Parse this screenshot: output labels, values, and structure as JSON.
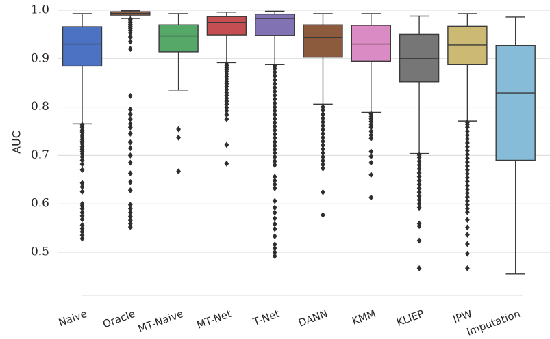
{
  "chart_data": {
    "type": "box",
    "title": "",
    "xlabel": "",
    "ylabel": "AUC",
    "ylim": [
      0.44,
      1.0
    ],
    "yticks": [
      0.5,
      0.6,
      0.7,
      0.8,
      0.9,
      1.0
    ],
    "ytick_labels": [
      "0.5",
      "0.6",
      "0.7",
      "0.8",
      "0.9",
      "1.0"
    ],
    "grid": "horizontal",
    "categories": [
      "Naive",
      "Oracle",
      "MT-Naive",
      "MT-Net",
      "T-Net",
      "DANN",
      "KMM",
      "KLIEP",
      "IPW",
      "Imputation"
    ],
    "boxes": [
      {
        "name": "Naive",
        "color": "#4c72c4",
        "whislo": 0.765,
        "q1": 0.885,
        "median": 0.93,
        "q3": 0.966,
        "whishi": 0.993,
        "fliers": [
          0.528,
          0.535,
          0.542,
          0.549,
          0.556,
          0.568,
          0.575,
          0.582,
          0.59,
          0.596,
          0.6,
          0.625,
          0.635,
          0.643,
          0.67,
          0.682,
          0.69,
          0.697,
          0.703,
          0.708,
          0.713,
          0.718,
          0.724,
          0.728,
          0.733,
          0.738,
          0.742,
          0.748,
          0.752,
          0.757,
          0.76,
          0.763
        ]
      },
      {
        "name": "Oracle",
        "color": "#dd8452",
        "whislo": 0.983,
        "q1": 0.99,
        "median": 0.994,
        "q3": 0.997,
        "whishi": 0.999,
        "fliers": [
          0.552,
          0.559,
          0.566,
          0.574,
          0.582,
          0.59,
          0.598,
          0.628,
          0.645,
          0.663,
          0.685,
          0.7,
          0.715,
          0.727,
          0.745,
          0.758,
          0.765,
          0.775,
          0.785,
          0.795,
          0.823,
          0.92,
          0.935,
          0.945,
          0.953,
          0.958,
          0.963,
          0.967,
          0.971,
          0.975,
          0.978,
          0.981
        ]
      },
      {
        "name": "MT-Naive",
        "color": "#55a868",
        "whislo": 0.835,
        "q1": 0.914,
        "median": 0.947,
        "q3": 0.97,
        "whishi": 0.993,
        "fliers": [
          0.667,
          0.737,
          0.754
        ]
      },
      {
        "name": "MT-Net",
        "color": "#c44e52",
        "whislo": 0.892,
        "q1": 0.949,
        "median": 0.975,
        "q3": 0.987,
        "whishi": 0.996,
        "fliers": [
          0.683,
          0.722,
          0.775,
          0.784,
          0.792,
          0.799,
          0.806,
          0.812,
          0.818,
          0.824,
          0.83,
          0.836,
          0.842,
          0.848,
          0.853,
          0.858,
          0.863,
          0.868,
          0.873,
          0.878,
          0.882,
          0.886,
          0.889
        ]
      },
      {
        "name": "T-Net",
        "color": "#8172b3",
        "whislo": 0.888,
        "q1": 0.948,
        "median": 0.983,
        "q3": 0.992,
        "whishi": 0.998,
        "fliers": [
          0.492,
          0.5,
          0.508,
          0.516,
          0.533,
          0.548,
          0.558,
          0.57,
          0.582,
          0.592,
          0.606,
          0.632,
          0.64,
          0.648,
          0.656,
          0.68,
          0.688,
          0.697,
          0.705,
          0.712,
          0.72,
          0.728,
          0.736,
          0.744,
          0.752,
          0.76,
          0.768,
          0.776,
          0.784,
          0.792,
          0.8,
          0.808,
          0.816,
          0.824,
          0.832,
          0.84,
          0.848,
          0.856,
          0.864,
          0.872,
          0.88,
          0.885
        ]
      },
      {
        "name": "DANN",
        "color": "#8c5a3c",
        "whislo": 0.806,
        "q1": 0.903,
        "median": 0.944,
        "q3": 0.97,
        "whishi": 0.993,
        "fliers": [
          0.577,
          0.624,
          0.673,
          0.681,
          0.689,
          0.697,
          0.705,
          0.713,
          0.721,
          0.729,
          0.737,
          0.745,
          0.753,
          0.761,
          0.769,
          0.777,
          0.785,
          0.793,
          0.8
        ]
      },
      {
        "name": "KMM",
        "color": "#da8bc3",
        "whislo": 0.789,
        "q1": 0.895,
        "median": 0.93,
        "q3": 0.969,
        "whishi": 0.993,
        "fliers": [
          0.613,
          0.66,
          0.685,
          0.698,
          0.708,
          0.735,
          0.742,
          0.75,
          0.758,
          0.764,
          0.77,
          0.776,
          0.781,
          0.786
        ]
      },
      {
        "name": "KLIEP",
        "color": "#767676",
        "whislo": 0.704,
        "q1": 0.852,
        "median": 0.9,
        "q3": 0.95,
        "whishi": 0.988,
        "fliers": [
          0.467,
          0.524,
          0.554,
          0.559,
          0.592,
          0.6,
          0.608,
          0.616,
          0.624,
          0.632,
          0.64,
          0.648,
          0.656,
          0.664,
          0.672,
          0.68,
          0.688,
          0.696,
          0.701
        ]
      },
      {
        "name": "IPW",
        "color": "#ccb974",
        "whislo": 0.771,
        "q1": 0.888,
        "median": 0.928,
        "q3": 0.967,
        "whishi": 0.993,
        "fliers": [
          0.467,
          0.497,
          0.517,
          0.536,
          0.551,
          0.567,
          0.583,
          0.59,
          0.598,
          0.606,
          0.614,
          0.622,
          0.63,
          0.638,
          0.646,
          0.654,
          0.662,
          0.67,
          0.678,
          0.686,
          0.694,
          0.702,
          0.71,
          0.718,
          0.726,
          0.734,
          0.742,
          0.75,
          0.758,
          0.764,
          0.768
        ]
      },
      {
        "name": "Imputation",
        "color": "#86bcd8",
        "whislo": 0.455,
        "q1": 0.69,
        "median": 0.829,
        "q3": 0.927,
        "whishi": 0.986,
        "fliers": []
      }
    ]
  }
}
